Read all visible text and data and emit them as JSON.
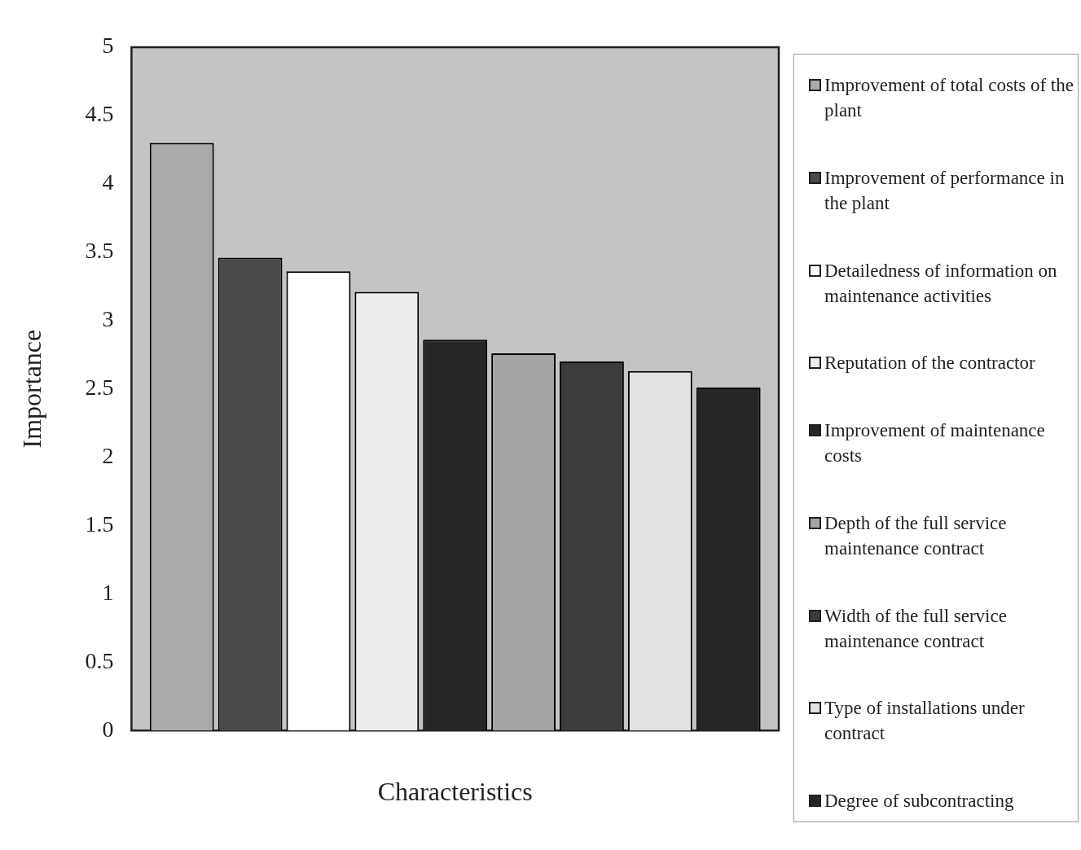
{
  "chart_data": {
    "type": "bar",
    "xlabel": "Characteristics",
    "ylabel": "Importance",
    "categories": [
      null
    ],
    "series": [
      {
        "name": "Improvement of total costs of the plant",
        "color": "#aaaaaa",
        "values": [
          4.3
        ]
      },
      {
        "name": "Improvement of performance in the plant",
        "color": "#4a4a4a",
        "values": [
          3.46
        ]
      },
      {
        "name": "Detailedness of information on maintenance activities",
        "color": "#ffffff",
        "values": [
          3.36
        ]
      },
      {
        "name": "Reputation of the contractor",
        "color": "#ececec",
        "values": [
          3.21
        ]
      },
      {
        "name": "Improvement of maintenance costs",
        "color": "#262626",
        "values": [
          2.86
        ]
      },
      {
        "name": "Depth of the full service maintenance contract",
        "color": "#a4a4a4",
        "values": [
          2.76
        ]
      },
      {
        "name": "Width of the full service maintenance contract",
        "color": "#3c3c3c",
        "values": [
          2.7
        ]
      },
      {
        "name": "Type of installations under contract",
        "color": "#e2e2e2",
        "values": [
          2.63
        ]
      },
      {
        "name": "Degree of subcontracting",
        "color": "#262626",
        "values": [
          2.51
        ]
      }
    ],
    "ylim": [
      0,
      5
    ],
    "yticks": [
      0,
      0.5,
      1,
      1.5,
      2,
      2.5,
      3,
      3.5,
      4,
      4.5,
      5
    ],
    "grid": false,
    "legend": "right"
  }
}
